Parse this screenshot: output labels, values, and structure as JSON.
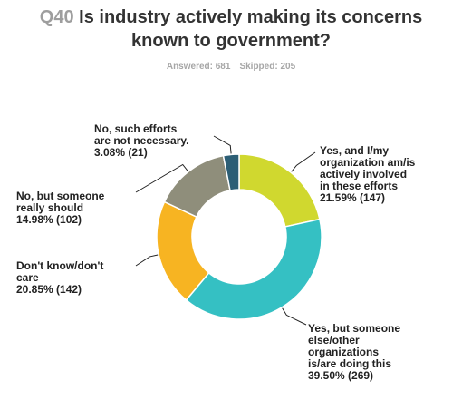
{
  "question": {
    "number": "Q40",
    "title_line1": "Is industry actively making its concerns",
    "title_line2": "known to government?"
  },
  "stats": {
    "answered": "Answered: 681",
    "skipped": "Skipped: 205"
  },
  "chart_data": {
    "type": "pie",
    "donut": true,
    "total": 681,
    "slices": [
      {
        "label_lines": [
          "Yes, and I/my",
          "organization am/is",
          "actively involved",
          "in these efforts",
          "21.59% (147)"
        ],
        "percent": 21.59,
        "count": 147,
        "color": "#d0d82f"
      },
      {
        "label_lines": [
          "Yes, but someone",
          "else/other",
          "organizations",
          "is/are doing this",
          "39.50% (269)"
        ],
        "percent": 39.5,
        "count": 269,
        "color": "#35c0c3"
      },
      {
        "label_lines": [
          "Don't know/don't",
          "care",
          "20.85% (142)"
        ],
        "percent": 20.85,
        "count": 142,
        "color": "#f7b422"
      },
      {
        "label_lines": [
          "No, but someone",
          "really should",
          "14.98% (102)"
        ],
        "percent": 14.98,
        "count": 102,
        "color": "#8f8e7b"
      },
      {
        "label_lines": [
          "No, such efforts",
          "are not necessary.",
          "3.08% (21)"
        ],
        "percent": 3.08,
        "count": 21,
        "color": "#2c5e75"
      }
    ]
  }
}
